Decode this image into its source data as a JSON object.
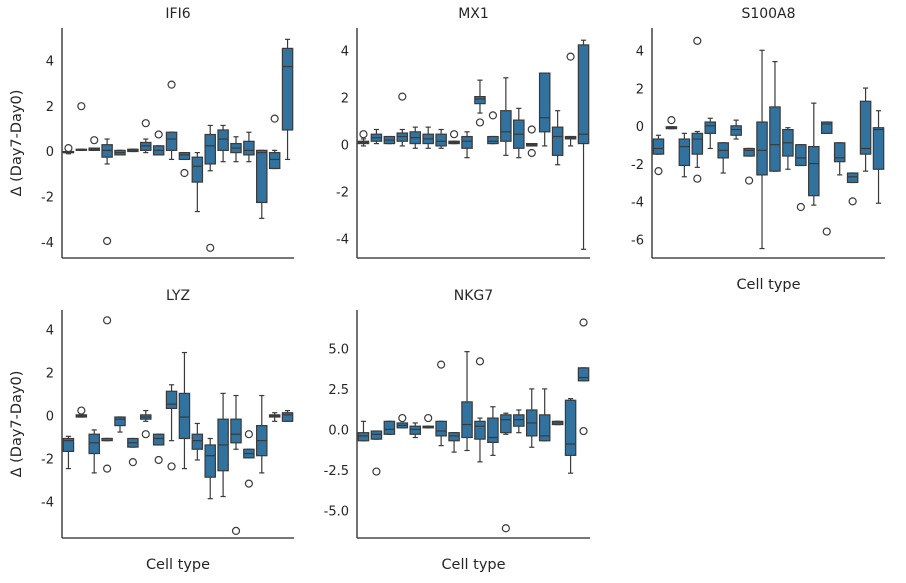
{
  "chart_data": [
    {
      "type": "box",
      "title": "IFI6",
      "ylabel": "Δ (Day7-Day0)",
      "color": "#31729e",
      "categories": [
        null,
        null,
        null,
        null,
        null,
        null,
        null,
        null,
        null,
        null,
        null,
        null,
        null,
        null,
        null,
        null,
        null,
        null
      ],
      "ylim": [
        -4.65,
        5.5
      ],
      "yticks": [
        -4,
        -2,
        0,
        2,
        4
      ],
      "boxes": [
        {
          "low": -0.05,
          "q1": 0,
          "median": 0,
          "q3": 0.05,
          "high": 0.1,
          "outliers": [
            0.2
          ]
        },
        {
          "low": 0.1,
          "q1": 0.1,
          "median": 0.12,
          "q3": 0.15,
          "high": 0.15,
          "outliers": [
            2.05
          ]
        },
        {
          "low": 0.1,
          "q1": 0.1,
          "median": 0.15,
          "q3": 0.2,
          "high": 0.2,
          "outliers": [
            0.55
          ]
        },
        {
          "low": -0.5,
          "q1": -0.2,
          "median": 0.1,
          "q3": 0.35,
          "high": 0.6,
          "outliers": [
            -3.9
          ]
        },
        {
          "low": -0.1,
          "q1": -0.1,
          "median": 0,
          "q3": 0.1,
          "high": 0.1
        },
        {
          "low": 0.05,
          "q1": 0.05,
          "median": 0.1,
          "q3": 0.15,
          "high": 0.15
        },
        {
          "low": 0,
          "q1": 0.1,
          "median": 0.3,
          "q3": 0.45,
          "high": 0.6,
          "outliers": [
            1.3
          ]
        },
        {
          "low": -0.1,
          "q1": -0.1,
          "median": 0.1,
          "q3": 0.3,
          "high": 0.3,
          "outliers": [
            0.8
          ]
        },
        {
          "low": -0.3,
          "q1": 0.1,
          "median": 0.6,
          "q3": 0.9,
          "high": 0.9,
          "outliers": [
            3.0
          ]
        },
        {
          "low": -0.3,
          "q1": -0.3,
          "median": -0.1,
          "q3": 0,
          "high": 0,
          "outliers": [
            -0.9
          ]
        },
        {
          "low": -2.6,
          "q1": -1.3,
          "median": -0.6,
          "q3": -0.2,
          "high": 0
        },
        {
          "low": -0.8,
          "q1": -0.5,
          "median": 0.3,
          "q3": 0.8,
          "high": 1.2,
          "outliers": [
            -4.2
          ]
        },
        {
          "low": -0.4,
          "q1": 0.1,
          "median": 0.6,
          "q3": 1.0,
          "high": 1.2
        },
        {
          "low": -0.4,
          "q1": 0,
          "median": 0.2,
          "q3": 0.4,
          "high": 0.7
        },
        {
          "low": -0.4,
          "q1": -0.1,
          "median": 0.1,
          "q3": 0.5,
          "high": 0.9
        },
        {
          "low": -2.9,
          "q1": -2.2,
          "median": 0,
          "q3": 0.1,
          "high": 0.1
        },
        {
          "low": -0.7,
          "q1": -0.7,
          "median": -0.3,
          "q3": 0,
          "high": 0.1,
          "outliers": [
            1.5
          ]
        },
        {
          "low": -0.3,
          "q1": 1.0,
          "median": 3.8,
          "q3": 4.6,
          "high": 5.0
        }
      ]
    },
    {
      "type": "box",
      "title": "MX1",
      "color": "#31729e",
      "categories": [
        null,
        null,
        null,
        null,
        null,
        null,
        null,
        null,
        null,
        null,
        null,
        null,
        null,
        null,
        null,
        null,
        null,
        null
      ],
      "ylim": [
        -4.77,
        5.02
      ],
      "yticks": [
        -4,
        -2,
        0,
        2,
        4
      ],
      "boxes": [
        {
          "low": 0,
          "q1": 0.1,
          "median": 0.15,
          "q3": 0.2,
          "high": 0.3,
          "outliers": [
            0.5
          ]
        },
        {
          "low": 0.1,
          "q1": 0.2,
          "median": 0.35,
          "q3": 0.5,
          "high": 0.7
        },
        {
          "low": 0.1,
          "q1": 0.1,
          "median": 0.25,
          "q3": 0.4,
          "high": 0.4
        },
        {
          "low": 0,
          "q1": 0.2,
          "median": 0.4,
          "q3": 0.55,
          "high": 0.7,
          "outliers": [
            2.1
          ]
        },
        {
          "low": -0.1,
          "q1": 0.1,
          "median": 0.35,
          "q3": 0.6,
          "high": 0.8
        },
        {
          "low": -0.1,
          "q1": 0.1,
          "median": 0.3,
          "q3": 0.5,
          "high": 0.8
        },
        {
          "low": -0.1,
          "q1": 0,
          "median": 0.2,
          "q3": 0.5,
          "high": 0.7
        },
        {
          "low": 0.1,
          "q1": 0.1,
          "median": 0.15,
          "q3": 0.2,
          "high": 0.2,
          "outliers": [
            0.5
          ]
        },
        {
          "low": -0.5,
          "q1": -0.1,
          "median": 0.2,
          "q3": 0.4,
          "high": 0.6
        },
        {
          "low": 1.4,
          "q1": 1.8,
          "median": 2.0,
          "q3": 2.1,
          "high": 2.8,
          "outliers": [
            1.0
          ]
        },
        {
          "low": 0.1,
          "q1": 0.1,
          "median": 0.2,
          "q3": 0.4,
          "high": 0.4,
          "outliers": [
            1.3
          ]
        },
        {
          "low": -0.4,
          "q1": 0.2,
          "median": 0.6,
          "q3": 1.5,
          "high": 2.9
        },
        {
          "low": -0.5,
          "q1": -0.1,
          "median": 0.5,
          "q3": 1.1,
          "high": 1.6
        },
        {
          "low": 0,
          "q1": 0,
          "median": 0.05,
          "q3": 0.1,
          "high": 0.1,
          "outliers": [
            -0.3,
            0.7
          ]
        },
        {
          "low": 0,
          "q1": 0.6,
          "median": 1.2,
          "q3": 3.1,
          "high": 3.1
        },
        {
          "low": -0.8,
          "q1": -0.4,
          "median": 0.4,
          "q3": 0.8,
          "high": 1.5
        },
        {
          "low": 0,
          "q1": 0.3,
          "median": 0.35,
          "q3": 0.4,
          "high": 0.4,
          "outliers": [
            3.8
          ]
        },
        {
          "low": -4.4,
          "q1": 0.1,
          "median": 0.5,
          "q3": 4.3,
          "high": 4.5
        }
      ]
    },
    {
      "type": "box",
      "title": "S100A8",
      "xlabel": "Cell type",
      "color": "#31729e",
      "categories": [
        null,
        null,
        null,
        null,
        null,
        null,
        null,
        null,
        null,
        null,
        null,
        null,
        null,
        null,
        null,
        null,
        null,
        null
      ],
      "ylim": [
        -6.9,
        5.28
      ],
      "yticks": [
        -6,
        -4,
        -2,
        0,
        2,
        4
      ],
      "boxes": [
        {
          "low": -1.4,
          "q1": -1.4,
          "median": -1.1,
          "q3": -0.6,
          "high": -0.4,
          "outliers": [
            -2.3
          ]
        },
        {
          "low": -0.05,
          "q1": -0.05,
          "median": 0,
          "q3": 0.05,
          "high": 0.05,
          "outliers": [
            0.4
          ]
        },
        {
          "low": -2.6,
          "q1": -2.0,
          "median": -1.0,
          "q3": -0.6,
          "high": -0.3
        },
        {
          "low": -2.1,
          "q1": -1.4,
          "median": -0.6,
          "q3": -0.3,
          "high": -0.2,
          "outliers": [
            4.6,
            -2.7
          ]
        },
        {
          "low": -1.1,
          "q1": -0.3,
          "median": 0.1,
          "q3": 0.3,
          "high": 0.5
        },
        {
          "low": -2.4,
          "q1": -1.6,
          "median": -1.2,
          "q3": -0.8,
          "high": -0.8
        },
        {
          "low": -0.6,
          "q1": -0.4,
          "median": -0.1,
          "q3": 0.1,
          "high": 0.4
        },
        {
          "low": -1.5,
          "q1": -1.5,
          "median": -1.2,
          "q3": -1.1,
          "high": -1.1,
          "outliers": [
            -2.8
          ]
        },
        {
          "low": -6.4,
          "q1": -2.5,
          "median": -1.2,
          "q3": 0.3,
          "high": 4.1
        },
        {
          "low": -2.3,
          "q1": -2.3,
          "median": -0.9,
          "q3": 1.1,
          "high": 3.5
        },
        {
          "low": -2.2,
          "q1": -1.5,
          "median": -0.8,
          "q3": -0.1,
          "high": 0
        },
        {
          "low": -2.0,
          "q1": -2.0,
          "median": -1.6,
          "q3": -0.9,
          "high": -0.9,
          "outliers": [
            -4.2
          ]
        },
        {
          "low": -4.1,
          "q1": -3.6,
          "median": -1.9,
          "q3": -1.0,
          "high": 1.3
        },
        {
          "low": -0.3,
          "q1": -0.3,
          "median": 0.2,
          "q3": 0.3,
          "high": 0.3,
          "outliers": [
            -5.5
          ]
        },
        {
          "low": -2.5,
          "q1": -1.8,
          "median": -1.6,
          "q3": -0.8,
          "high": -0.8
        },
        {
          "low": -2.9,
          "q1": -2.9,
          "median": -2.6,
          "q3": -2.4,
          "high": -2.4,
          "outliers": [
            -3.9
          ]
        },
        {
          "low": -2.3,
          "q1": -1.4,
          "median": -1.1,
          "q3": 1.4,
          "high": 2.1
        },
        {
          "low": -4.0,
          "q1": -2.2,
          "median": -0.1,
          "q3": 0,
          "high": 0.9
        }
      ]
    },
    {
      "type": "box",
      "title": "LYZ",
      "ylabel": "Δ (Day7-Day0)",
      "xlabel": "Cell type",
      "color": "#31729e",
      "categories": [
        null,
        null,
        null,
        null,
        null,
        null,
        null,
        null,
        null,
        null,
        null,
        null,
        null,
        null,
        null,
        null,
        null,
        null
      ],
      "ylim": [
        -5.63,
        4.98
      ],
      "yticks": [
        -4,
        -2,
        0,
        2,
        4
      ],
      "boxes": [
        {
          "low": -2.4,
          "q1": -1.6,
          "median": -1.1,
          "q3": -1.0,
          "high": -0.9
        },
        {
          "low": 0,
          "q1": 0,
          "median": 0.05,
          "q3": 0.1,
          "high": 0.1,
          "outliers": [
            0.3
          ]
        },
        {
          "low": -2.6,
          "q1": -1.7,
          "median": -1.2,
          "q3": -0.8,
          "high": -0.6
        },
        {
          "low": -1.1,
          "q1": -1.1,
          "median": -1.0,
          "q3": -1.0,
          "high": -1.0,
          "outliers": [
            4.5,
            -2.4
          ]
        },
        {
          "low": -0.7,
          "q1": -0.4,
          "median": -0.1,
          "q3": 0,
          "high": 0
        },
        {
          "low": -1.4,
          "q1": -1.4,
          "median": -1.2,
          "q3": -1.0,
          "high": -1.0,
          "outliers": [
            -2.1
          ]
        },
        {
          "low": -0.2,
          "q1": -0.1,
          "median": 0,
          "q3": 0.1,
          "high": 0.3,
          "outliers": [
            -0.8
          ]
        },
        {
          "low": -1.3,
          "q1": -1.3,
          "median": -1.0,
          "q3": -0.8,
          "high": -0.8,
          "outliers": [
            -2.0
          ]
        },
        {
          "low": -1.1,
          "q1": 0.4,
          "median": 0.6,
          "q3": 1.2,
          "high": 1.5,
          "outliers": [
            -2.3
          ]
        },
        {
          "low": -2.4,
          "q1": -1.0,
          "median": 0,
          "q3": 1.1,
          "high": 3.0
        },
        {
          "low": -2.0,
          "q1": -1.5,
          "median": -1.1,
          "q3": -0.8,
          "high": -0.3
        },
        {
          "low": -3.8,
          "q1": -2.8,
          "median": -1.8,
          "q3": -1.3,
          "high": -1.0
        },
        {
          "low": -3.7,
          "q1": -2.5,
          "median": -1.3,
          "q3": -0.1,
          "high": 1.1
        },
        {
          "low": -1.5,
          "q1": -1.2,
          "median": -0.8,
          "q3": -0.1,
          "high": 1.0,
          "outliers": [
            -5.3
          ]
        },
        {
          "low": -1.9,
          "q1": -1.9,
          "median": -1.7,
          "q3": -1.5,
          "high": -1.5,
          "outliers": [
            -0.8,
            -3.1
          ]
        },
        {
          "low": -2.6,
          "q1": -1.8,
          "median": -1.1,
          "q3": -0.4,
          "high": 1.0
        },
        {
          "low": -0.2,
          "q1": 0,
          "median": 0.05,
          "q3": 0.1,
          "high": 0.2
        },
        {
          "low": -0.2,
          "q1": -0.2,
          "median": 0.1,
          "q3": 0.2,
          "high": 0.3
        }
      ]
    },
    {
      "type": "box",
      "title": "NKG7",
      "xlabel": "Cell type",
      "color": "#31729e",
      "categories": [
        null,
        null,
        null,
        null,
        null,
        null,
        null,
        null,
        null,
        null,
        null,
        null,
        null,
        null,
        null,
        null,
        null,
        null
      ],
      "ylim": [
        -6.6,
        7.47
      ],
      "yticks": [
        {
          "value": -5,
          "label": "-5.0"
        },
        -2.5,
        {
          "value": 0,
          "label": "0.0"
        },
        2.5,
        {
          "value": 5,
          "label": "5.0"
        }
      ],
      "boxes": [
        {
          "low": -0.6,
          "q1": -0.6,
          "median": -0.3,
          "q3": -0.1,
          "high": 0.6
        },
        {
          "low": -0.5,
          "q1": -0.5,
          "median": -0.2,
          "q3": 0,
          "high": 0,
          "outliers": [
            -2.5
          ]
        },
        {
          "low": -0.2,
          "q1": -0.2,
          "median": 0.1,
          "q3": 0.6,
          "high": 0.6
        },
        {
          "low": 0.2,
          "q1": 0.2,
          "median": 0.35,
          "q3": 0.5,
          "high": 0.5,
          "outliers": [
            0.8
          ]
        },
        {
          "low": -0.4,
          "q1": -0.2,
          "median": 0.1,
          "q3": 0.3,
          "high": 0.5
        },
        {
          "low": 0.2,
          "q1": 0.2,
          "median": 0.25,
          "q3": 0.3,
          "high": 0.3,
          "outliers": [
            0.8
          ]
        },
        {
          "low": -0.9,
          "q1": -0.3,
          "median": 0,
          "q3": 0.6,
          "high": 0.6,
          "outliers": [
            4.1
          ]
        },
        {
          "low": -1.3,
          "q1": -0.6,
          "median": -0.3,
          "q3": -0.1,
          "high": -0.1
        },
        {
          "low": -1.2,
          "q1": -0.4,
          "median": 0.4,
          "q3": 1.8,
          "high": 4.9
        },
        {
          "low": -1.9,
          "q1": -0.5,
          "median": 0.3,
          "q3": 0.6,
          "high": 0.8,
          "outliers": [
            4.3
          ]
        },
        {
          "low": -1.5,
          "q1": -0.7,
          "median": -0.4,
          "q3": 0.8,
          "high": 1.5
        },
        {
          "low": -0.2,
          "q1": -0.1,
          "median": 0.7,
          "q3": 1.0,
          "high": 1.1,
          "outliers": [
            -6.0
          ]
        },
        {
          "low": -0.1,
          "q1": 0.3,
          "median": 0.7,
          "q3": 1.0,
          "high": 1.3
        },
        {
          "low": -1.0,
          "q1": -0.3,
          "median": 0.5,
          "q3": 1.3,
          "high": 2.6
        },
        {
          "low": -0.6,
          "q1": -0.6,
          "median": -0.3,
          "q3": 1.0,
          "high": 2.6
        },
        {
          "low": 0.4,
          "q1": 0.4,
          "median": 0.5,
          "q3": 0.6,
          "high": 0.6
        },
        {
          "low": -2.6,
          "q1": -1.5,
          "median": -0.8,
          "q3": 1.9,
          "high": 2.0
        },
        {
          "low": 3.1,
          "q1": 3.1,
          "median": 3.3,
          "q3": 3.9,
          "high": 3.9,
          "outliers": [
            6.7,
            0
          ]
        }
      ]
    }
  ]
}
